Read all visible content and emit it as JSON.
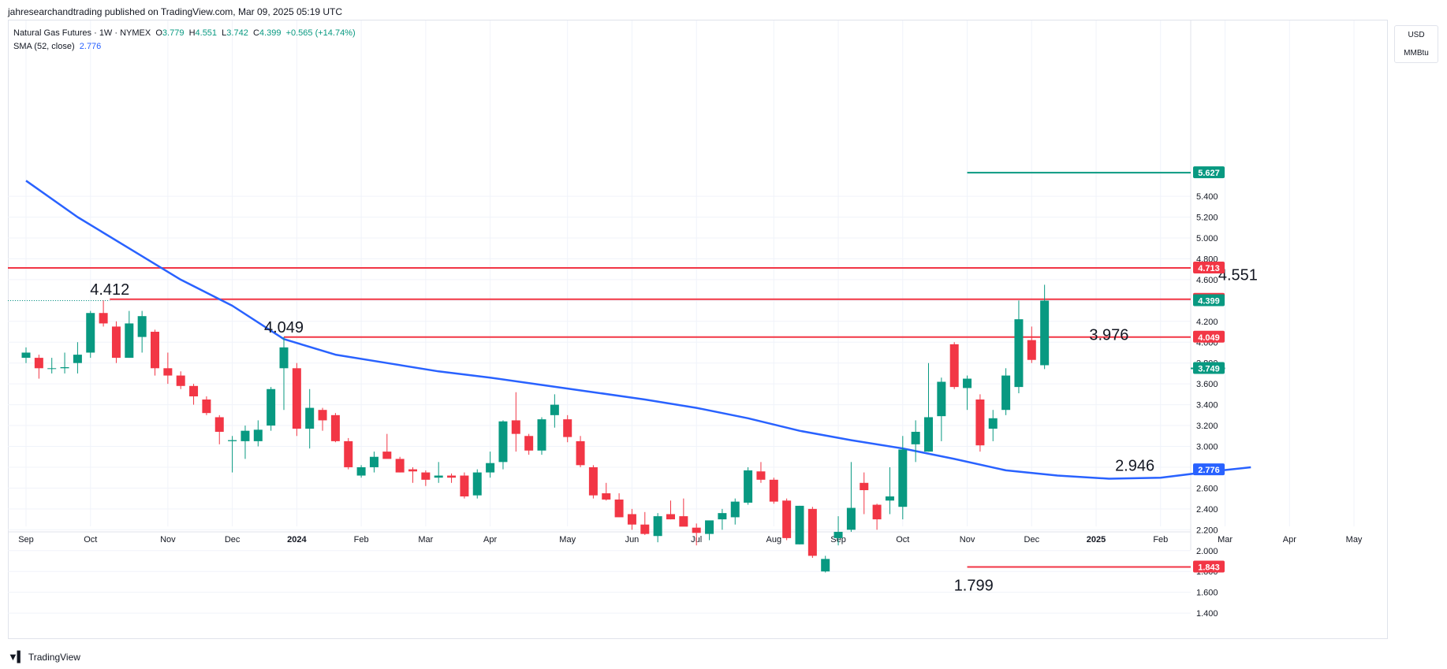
{
  "header": {
    "caption": "jahresearchandtrading published on TradingView.com, Mar 09, 2025 05:19 UTC"
  },
  "legend": {
    "symbol": "Natural Gas Futures · 1W · NYMEX",
    "open_label": "O",
    "open": "3.779",
    "high_label": "H",
    "high": "4.551",
    "low_label": "L",
    "low": "3.742",
    "close_label": "C",
    "close": "4.399",
    "change": "+0.565 (+14.74%)",
    "sma_label": "SMA (52, close)",
    "sma_value": "2.776"
  },
  "units": {
    "currency": "USD",
    "unit": "MMBtu"
  },
  "footer": {
    "brand": "TradingView"
  },
  "colors": {
    "up": "#089981",
    "down": "#f23645",
    "sma": "#2962ff",
    "red_level": "#f23645",
    "green_level": "#089981"
  },
  "chart_data": {
    "type": "candlestick",
    "title": "",
    "ylim": [
      1.2,
      5.8
    ],
    "y_ticks": [
      "1.400",
      "1.600",
      "1.800",
      "2.000",
      "2.200",
      "2.400",
      "2.600",
      "2.800",
      "3.000",
      "3.200",
      "3.400",
      "3.600",
      "3.800",
      "4.000",
      "4.200",
      "4.400",
      "4.600",
      "4.800",
      "5.000",
      "5.200",
      "5.400"
    ],
    "x_labels": [
      {
        "label": "Sep",
        "w": 0,
        "bold": false
      },
      {
        "label": "Oct",
        "w": 5,
        "bold": false
      },
      {
        "label": "Nov",
        "w": 11,
        "bold": false
      },
      {
        "label": "Dec",
        "w": 16,
        "bold": false
      },
      {
        "label": "2024",
        "w": 21,
        "bold": true
      },
      {
        "label": "Feb",
        "w": 26,
        "bold": false
      },
      {
        "label": "Mar",
        "w": 31,
        "bold": false
      },
      {
        "label": "Apr",
        "w": 36,
        "bold": false
      },
      {
        "label": "May",
        "w": 42,
        "bold": false
      },
      {
        "label": "Jun",
        "w": 47,
        "bold": false
      },
      {
        "label": "Jul",
        "w": 52,
        "bold": false
      },
      {
        "label": "Aug",
        "w": 58,
        "bold": false
      },
      {
        "label": "Sep",
        "w": 63,
        "bold": false
      },
      {
        "label": "Oct",
        "w": 68,
        "bold": false
      },
      {
        "label": "Nov",
        "w": 73,
        "bold": false
      },
      {
        "label": "Dec",
        "w": 78,
        "bold": false
      },
      {
        "label": "2025",
        "w": 83,
        "bold": true
      },
      {
        "label": "Feb",
        "w": 88,
        "bold": false
      },
      {
        "label": "Mar",
        "w": 93,
        "bold": false
      },
      {
        "label": "Apr",
        "w": 98,
        "bold": false
      },
      {
        "label": "May",
        "w": 103,
        "bold": false
      }
    ],
    "candles": [
      [
        3.85,
        3.95,
        3.8,
        3.9
      ],
      [
        3.85,
        3.88,
        3.65,
        3.75
      ],
      [
        3.75,
        3.85,
        3.7,
        3.75
      ],
      [
        3.75,
        3.9,
        3.7,
        3.76
      ],
      [
        3.8,
        4.0,
        3.7,
        3.88
      ],
      [
        3.9,
        4.3,
        3.85,
        4.28
      ],
      [
        4.28,
        4.4,
        4.15,
        4.18
      ],
      [
        4.15,
        4.2,
        3.8,
        3.85
      ],
      [
        3.85,
        4.3,
        3.85,
        4.18
      ],
      [
        4.05,
        4.3,
        3.9,
        4.25
      ],
      [
        4.1,
        4.12,
        3.68,
        3.75
      ],
      [
        3.75,
        3.9,
        3.6,
        3.68
      ],
      [
        3.68,
        3.72,
        3.55,
        3.58
      ],
      [
        3.58,
        3.6,
        3.4,
        3.48
      ],
      [
        3.45,
        3.48,
        3.3,
        3.32
      ],
      [
        3.28,
        3.3,
        3.02,
        3.14
      ],
      [
        3.05,
        3.1,
        2.75,
        3.06
      ],
      [
        3.05,
        3.2,
        2.88,
        3.15
      ],
      [
        3.05,
        3.25,
        3.0,
        3.16
      ],
      [
        3.2,
        3.57,
        3.15,
        3.55
      ],
      [
        3.75,
        4.05,
        3.35,
        3.95
      ],
      [
        3.75,
        3.8,
        3.1,
        3.17
      ],
      [
        3.17,
        3.55,
        2.98,
        3.37
      ],
      [
        3.35,
        3.37,
        3.15,
        3.25
      ],
      [
        3.3,
        3.32,
        3.04,
        3.05
      ],
      [
        3.05,
        3.08,
        2.78,
        2.8
      ],
      [
        2.72,
        2.82,
        2.7,
        2.8
      ],
      [
        2.8,
        2.95,
        2.75,
        2.9
      ],
      [
        2.95,
        3.12,
        2.9,
        2.88
      ],
      [
        2.88,
        2.9,
        2.75,
        2.75
      ],
      [
        2.78,
        2.8,
        2.65,
        2.76
      ],
      [
        2.75,
        2.77,
        2.62,
        2.68
      ],
      [
        2.7,
        2.85,
        2.65,
        2.72
      ],
      [
        2.72,
        2.74,
        2.65,
        2.7
      ],
      [
        2.72,
        2.75,
        2.5,
        2.52
      ],
      [
        2.53,
        2.78,
        2.5,
        2.75
      ],
      [
        2.75,
        2.95,
        2.7,
        2.84
      ],
      [
        2.85,
        3.25,
        2.78,
        3.24
      ],
      [
        3.25,
        3.52,
        2.95,
        3.12
      ],
      [
        3.1,
        3.12,
        2.92,
        2.96
      ],
      [
        2.96,
        3.28,
        2.92,
        3.26
      ],
      [
        3.3,
        3.5,
        3.18,
        3.4
      ],
      [
        3.26,
        3.3,
        3.04,
        3.09
      ],
      [
        3.05,
        3.1,
        2.8,
        2.82
      ],
      [
        2.8,
        2.82,
        2.5,
        2.53
      ],
      [
        2.55,
        2.65,
        2.48,
        2.49
      ],
      [
        2.49,
        2.55,
        2.32,
        2.32
      ],
      [
        2.35,
        2.4,
        2.2,
        2.25
      ],
      [
        2.25,
        2.37,
        2.15,
        2.16
      ],
      [
        2.14,
        2.36,
        2.08,
        2.33
      ],
      [
        2.35,
        2.48,
        2.3,
        2.3
      ],
      [
        2.33,
        2.5,
        2.25,
        2.23
      ],
      [
        2.22,
        2.26,
        2.05,
        2.17
      ],
      [
        2.16,
        2.28,
        2.1,
        2.29
      ],
      [
        2.3,
        2.4,
        2.2,
        2.36
      ],
      [
        2.32,
        2.5,
        2.25,
        2.47
      ],
      [
        2.46,
        2.8,
        2.44,
        2.77
      ],
      [
        2.76,
        2.85,
        2.65,
        2.68
      ],
      [
        2.68,
        2.7,
        2.45,
        2.47
      ],
      [
        2.48,
        2.5,
        2.1,
        2.12
      ],
      [
        2.06,
        2.43,
        2.06,
        2.43
      ],
      [
        2.4,
        2.42,
        1.93,
        1.95
      ],
      [
        1.8,
        1.95,
        1.79,
        1.92
      ],
      [
        2.12,
        2.33,
        2.05,
        2.18
      ],
      [
        2.2,
        2.85,
        2.18,
        2.41
      ],
      [
        2.65,
        2.75,
        2.35,
        2.58
      ],
      [
        2.44,
        2.45,
        2.2,
        2.3
      ],
      [
        2.48,
        2.8,
        2.35,
        2.52
      ],
      [
        2.42,
        3.1,
        2.3,
        2.97
      ],
      [
        3.02,
        3.25,
        2.85,
        3.14
      ],
      [
        2.95,
        3.8,
        2.95,
        3.28
      ],
      [
        3.29,
        3.66,
        3.05,
        3.62
      ],
      [
        3.98,
        4.0,
        3.55,
        3.57
      ],
      [
        3.56,
        3.68,
        3.35,
        3.65
      ],
      [
        3.45,
        3.5,
        2.95,
        3.01
      ],
      [
        3.17,
        3.35,
        3.05,
        3.27
      ],
      [
        3.35,
        3.75,
        3.3,
        3.68
      ],
      [
        3.57,
        4.4,
        3.51,
        4.22
      ],
      [
        4.02,
        4.15,
        3.8,
        3.83
      ],
      [
        3.779,
        4.551,
        3.742,
        4.399
      ]
    ],
    "sma_points": [
      [
        0,
        5.55
      ],
      [
        4,
        5.2
      ],
      [
        8,
        4.9
      ],
      [
        12,
        4.6
      ],
      [
        16,
        4.35
      ],
      [
        20,
        4.03
      ],
      [
        24,
        3.88
      ],
      [
        28,
        3.8
      ],
      [
        32,
        3.72
      ],
      [
        36,
        3.66
      ],
      [
        40,
        3.59
      ],
      [
        44,
        3.52
      ],
      [
        48,
        3.45
      ],
      [
        52,
        3.37
      ],
      [
        56,
        3.27
      ],
      [
        60,
        3.15
      ],
      [
        64,
        3.06
      ],
      [
        68,
        2.98
      ],
      [
        72,
        2.88
      ],
      [
        76,
        2.77
      ],
      [
        80,
        2.72
      ],
      [
        84,
        2.69
      ],
      [
        88,
        2.7
      ],
      [
        92,
        2.76
      ],
      [
        95,
        2.8
      ]
    ],
    "horizontal_lines": [
      {
        "y": 5.627,
        "w_start": 73,
        "label": "5.627",
        "color": "green"
      },
      {
        "y": 4.713,
        "w_start": -1,
        "label": "4.713",
        "color": "red"
      },
      {
        "y": 4.412,
        "w_start": 6.5,
        "label": "4.412",
        "color": "red"
      },
      {
        "y": 4.049,
        "w_start": 20,
        "label": "4.049",
        "color": "red"
      },
      {
        "y": 3.749,
        "w_start": 93,
        "label": "3.749",
        "color": "green"
      },
      {
        "y": 1.843,
        "w_start": 73,
        "label": "1.843",
        "color": "red"
      }
    ],
    "price_tags": [
      {
        "y": 4.399,
        "label": "4.399",
        "color": "green"
      },
      {
        "y": 2.776,
        "label": "2.776",
        "color": "blue"
      }
    ],
    "annotations": [
      {
        "text": "4.412",
        "w": 6.5,
        "y": 4.412
      },
      {
        "text": "4.049",
        "w": 20,
        "y": 4.049
      },
      {
        "text": "1.799",
        "w": 73.5,
        "y": 1.799
      },
      {
        "text": "3.976",
        "w": 84,
        "y": 3.976
      },
      {
        "text": "2.946",
        "w": 86,
        "y": 2.946
      },
      {
        "text": "4.551",
        "w": 94,
        "y": 4.551
      }
    ]
  }
}
